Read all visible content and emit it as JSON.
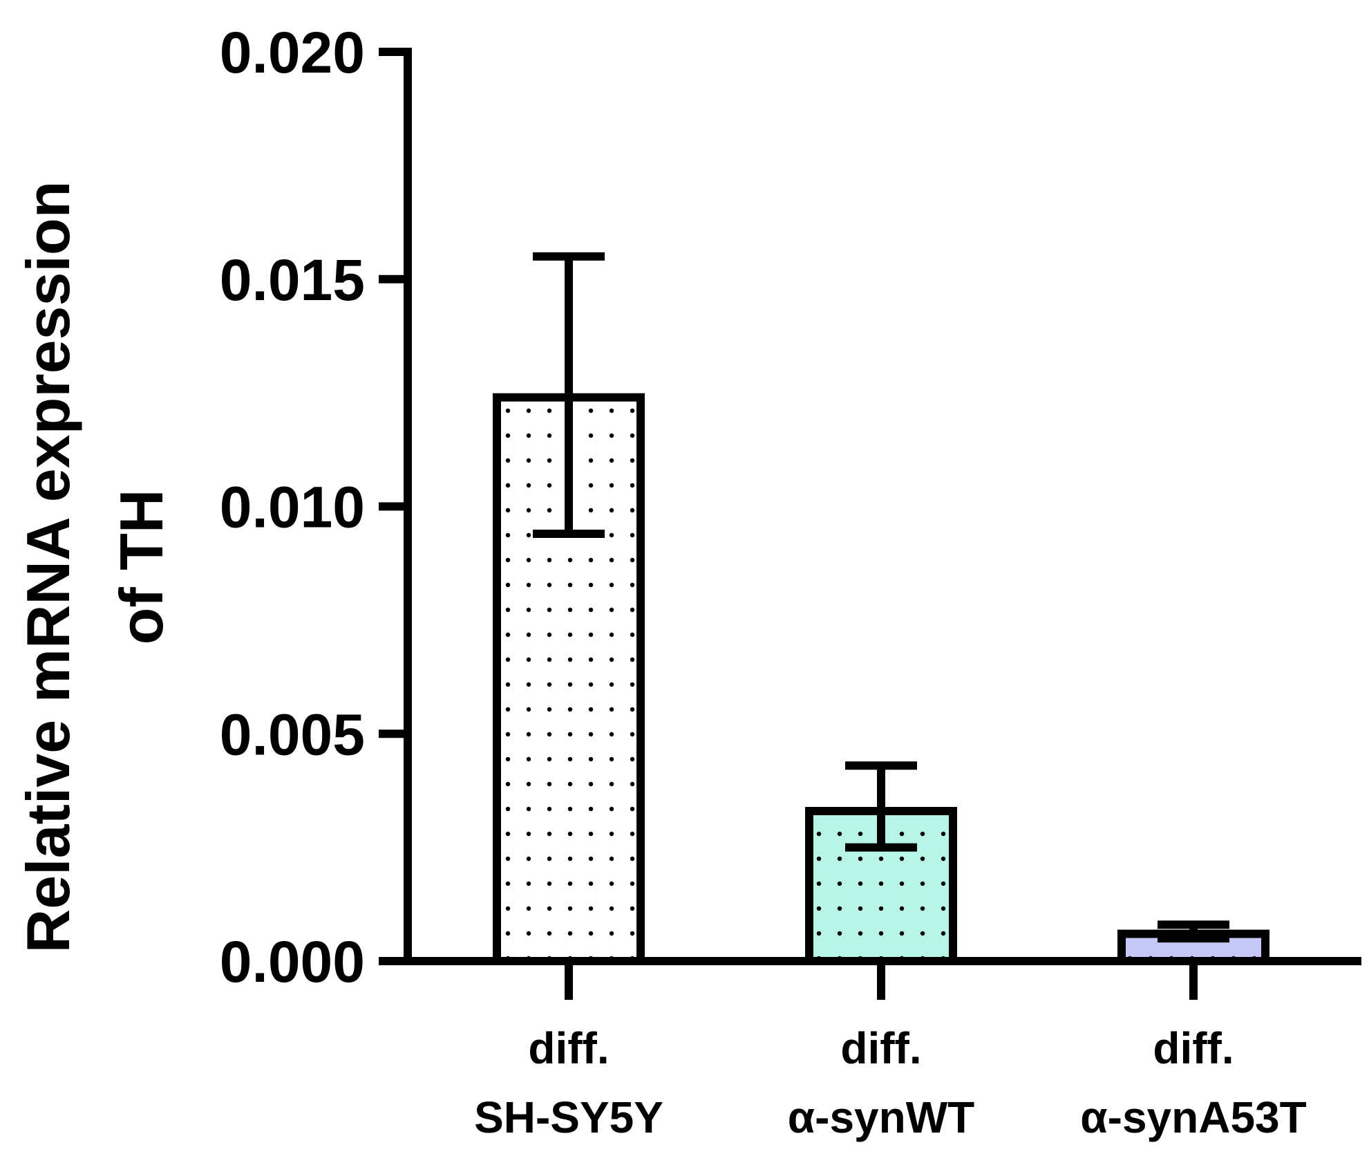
{
  "chart_data": {
    "type": "bar",
    "ylabel_lines": [
      "Relative mRNA expression",
      "of TH"
    ],
    "xlabel": "",
    "ylim": [
      0,
      0.02
    ],
    "yticks": [
      0.0,
      0.005,
      0.01,
      0.015,
      0.02
    ],
    "ytick_labels": [
      "0.000",
      "0.005",
      "0.010",
      "0.015",
      "0.020"
    ],
    "categories": [
      {
        "lines": [
          "diff.",
          "SH-SY5Y"
        ]
      },
      {
        "lines": [
          "diff.",
          "α-synWT"
        ]
      },
      {
        "lines": [
          "diff.",
          "α-synA53T"
        ]
      }
    ],
    "values": [
      0.0124,
      0.0033,
      0.0006
    ],
    "error_upper": [
      0.0155,
      0.0043,
      0.0008
    ],
    "error_lower": [
      0.0094,
      0.0025,
      0.0005
    ],
    "bar_fills": [
      "#ffffff",
      "#b8f5e6",
      "#c5c7f7"
    ],
    "pattern": "dots",
    "grid": false
  }
}
